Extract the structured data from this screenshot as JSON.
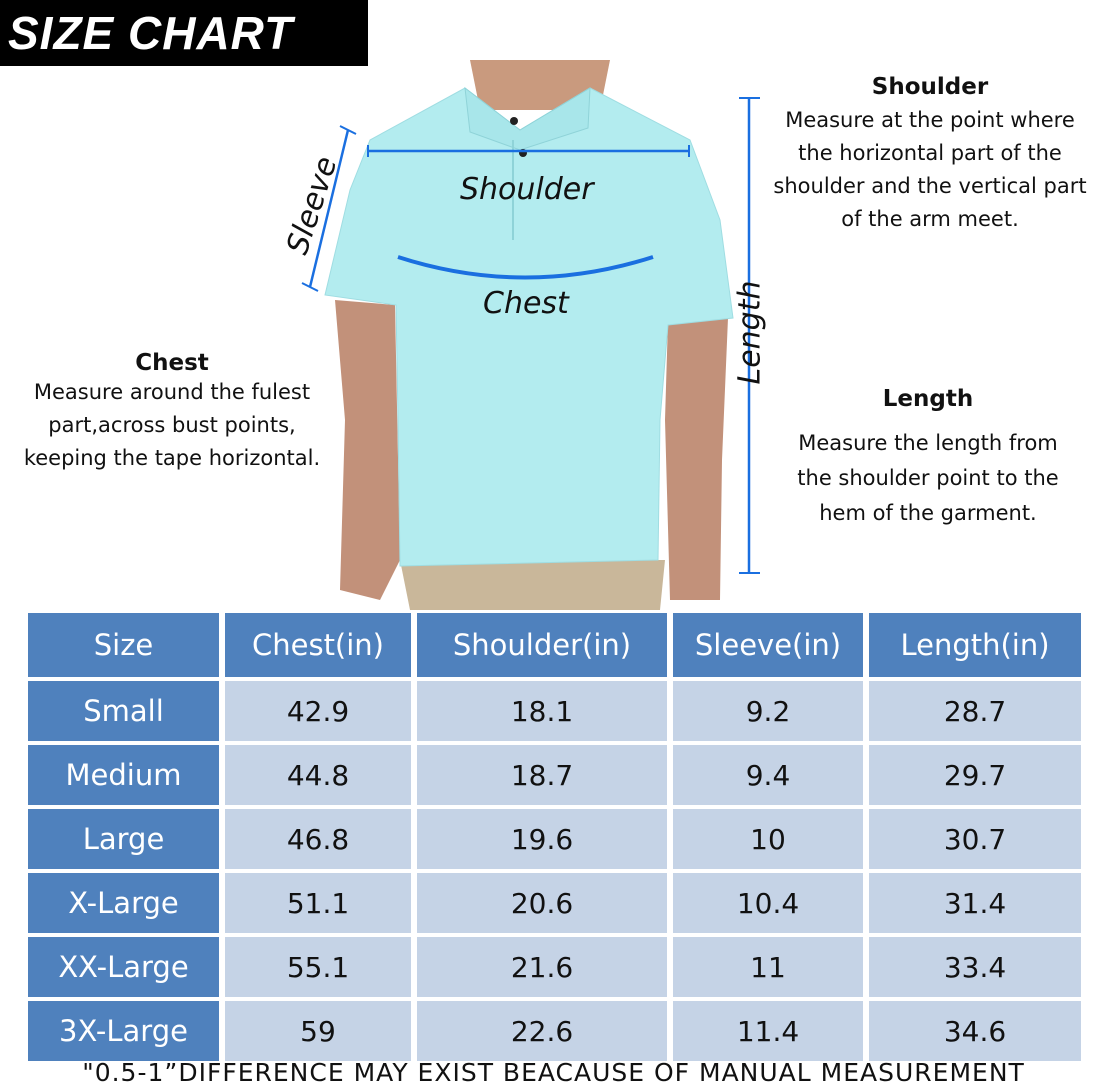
{
  "title": "SIZE CHART",
  "diagram_labels": {
    "sleeve": "Sleeve",
    "shoulder": "Shoulder",
    "chest": "Chest",
    "length": "Length"
  },
  "measure_color": "#1a6fe0",
  "shirt_color": "#b3ecef",
  "descriptions": {
    "shoulder": {
      "heading": "Shoulder",
      "lines": [
        "Measure at the point where",
        "the horizontal part of the",
        "shoulder and the vertical part",
        "of the arm meet."
      ]
    },
    "chest": {
      "heading": "Chest",
      "lines": [
        "Measure around the fulest",
        "part,across bust points,",
        "keeping the tape horizontal."
      ]
    },
    "length": {
      "heading": "Length",
      "lines": [
        "Measure the length from",
        "the shoulder point to the",
        "hem of the garment."
      ]
    }
  },
  "table": {
    "header_color": "#4f81bd",
    "cell_color": "#c5d3e6",
    "columns": [
      "Size",
      "Chest(in)",
      "Shoulder(in)",
      "Sleeve(in)",
      "Length(in)"
    ],
    "rows": [
      [
        "Small",
        "42.9",
        "18.1",
        "9.2",
        "28.7"
      ],
      [
        "Medium",
        "44.8",
        "18.7",
        "9.4",
        "29.7"
      ],
      [
        "Large",
        "46.8",
        "19.6",
        "10",
        "30.7"
      ],
      [
        "X-Large",
        "51.1",
        "20.6",
        "10.4",
        "31.4"
      ],
      [
        "XX-Large",
        "55.1",
        "21.6",
        "11",
        "33.4"
      ],
      [
        "3X-Large",
        "59",
        "22.6",
        "11.4",
        "34.6"
      ]
    ]
  },
  "footnote": "\"0.5-1”DIFFERENCE MAY EXIST BEACAUSE OF MANUAL MEASUREMENT"
}
